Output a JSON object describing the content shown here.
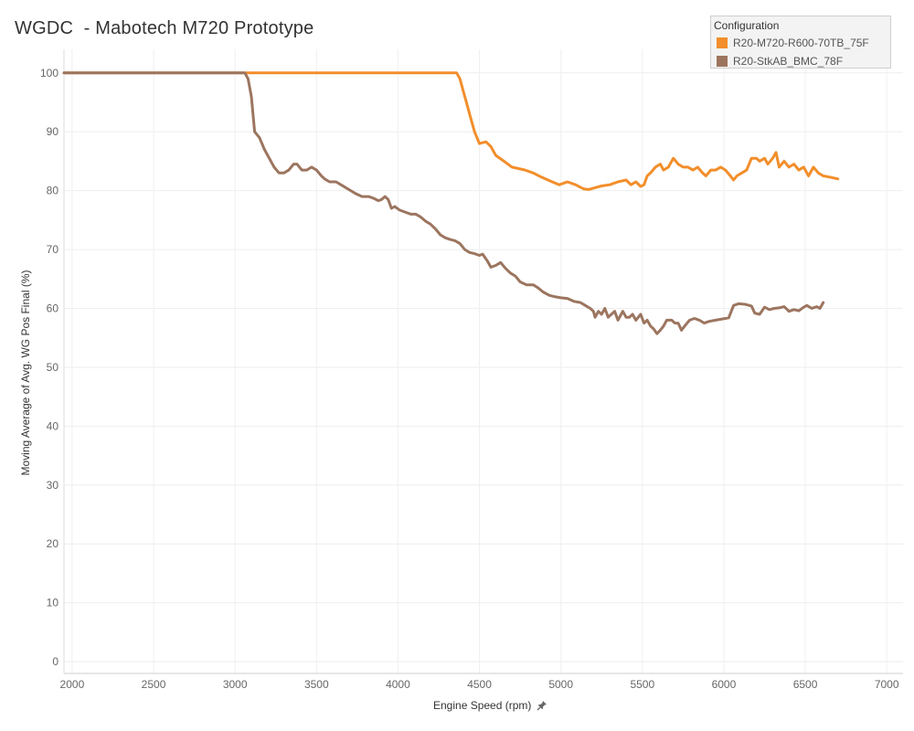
{
  "chart_data": {
    "type": "line",
    "title": "WGDC  - Mabotech M720 Prototype",
    "xlabel": "Engine Speed (rpm)",
    "ylabel": "Moving Average of Avg. WG Pos Final (%)",
    "xlim": [
      1950,
      7100
    ],
    "ylim": [
      -2,
      104
    ],
    "grid": true,
    "x_ticks": [
      2000,
      2500,
      3000,
      3500,
      4000,
      4500,
      5000,
      5500,
      6000,
      6500,
      7000
    ],
    "y_ticks": [
      0,
      10,
      20,
      30,
      40,
      50,
      60,
      70,
      80,
      90,
      100
    ],
    "legend": {
      "title": "Configuration",
      "position": "top-right"
    },
    "series": [
      {
        "name": "R20-M720-R600-70TB_75F",
        "color": "#f28e2b",
        "points": [
          [
            1950,
            100
          ],
          [
            4360,
            100
          ],
          [
            4380,
            99
          ],
          [
            4400,
            97
          ],
          [
            4420,
            95
          ],
          [
            4440,
            93
          ],
          [
            4470,
            90
          ],
          [
            4500,
            88
          ],
          [
            4540,
            88.3
          ],
          [
            4570,
            87.5
          ],
          [
            4600,
            86
          ],
          [
            4650,
            85
          ],
          [
            4700,
            84
          ],
          [
            4780,
            83.5
          ],
          [
            4830,
            83
          ],
          [
            4880,
            82.3
          ],
          [
            4930,
            81.7
          ],
          [
            4990,
            81
          ],
          [
            5040,
            81.5
          ],
          [
            5090,
            81
          ],
          [
            5140,
            80.3
          ],
          [
            5170,
            80.2
          ],
          [
            5210,
            80.5
          ],
          [
            5250,
            80.8
          ],
          [
            5300,
            81
          ],
          [
            5350,
            81.5
          ],
          [
            5400,
            81.8
          ],
          [
            5430,
            81
          ],
          [
            5460,
            81.5
          ],
          [
            5490,
            80.7
          ],
          [
            5510,
            81
          ],
          [
            5530,
            82.5
          ],
          [
            5550,
            83
          ],
          [
            5580,
            84
          ],
          [
            5610,
            84.5
          ],
          [
            5630,
            83.5
          ],
          [
            5660,
            84
          ],
          [
            5690,
            85.5
          ],
          [
            5720,
            84.5
          ],
          [
            5750,
            84
          ],
          [
            5780,
            84
          ],
          [
            5810,
            83.5
          ],
          [
            5840,
            84
          ],
          [
            5870,
            83
          ],
          [
            5890,
            82.5
          ],
          [
            5920,
            83.5
          ],
          [
            5950,
            83.5
          ],
          [
            5980,
            84
          ],
          [
            6010,
            83.5
          ],
          [
            6040,
            82.5
          ],
          [
            6060,
            81.8
          ],
          [
            6080,
            82.5
          ],
          [
            6110,
            83
          ],
          [
            6140,
            83.5
          ],
          [
            6170,
            85.5
          ],
          [
            6200,
            85.5
          ],
          [
            6220,
            85
          ],
          [
            6250,
            85.5
          ],
          [
            6270,
            84.5
          ],
          [
            6300,
            85.5
          ],
          [
            6320,
            86.5
          ],
          [
            6340,
            84
          ],
          [
            6370,
            85
          ],
          [
            6400,
            84
          ],
          [
            6430,
            84.5
          ],
          [
            6460,
            83.5
          ],
          [
            6490,
            84
          ],
          [
            6520,
            82.5
          ],
          [
            6550,
            84
          ],
          [
            6580,
            83
          ],
          [
            6610,
            82.5
          ],
          [
            6650,
            82.3
          ],
          [
            6700,
            82
          ]
        ]
      },
      {
        "name": "R20-StkAB_BMC_78F",
        "color": "#9c755f",
        "points": [
          [
            1950,
            100
          ],
          [
            3060,
            100
          ],
          [
            3080,
            99
          ],
          [
            3100,
            96
          ],
          [
            3120,
            90
          ],
          [
            3150,
            89
          ],
          [
            3180,
            87
          ],
          [
            3210,
            85.5
          ],
          [
            3240,
            84
          ],
          [
            3270,
            83
          ],
          [
            3300,
            83
          ],
          [
            3330,
            83.5
          ],
          [
            3360,
            84.5
          ],
          [
            3380,
            84.5
          ],
          [
            3410,
            83.5
          ],
          [
            3440,
            83.5
          ],
          [
            3470,
            84
          ],
          [
            3500,
            83.5
          ],
          [
            3530,
            82.5
          ],
          [
            3550,
            82
          ],
          [
            3580,
            81.5
          ],
          [
            3620,
            81.5
          ],
          [
            3650,
            81
          ],
          [
            3680,
            80.5
          ],
          [
            3710,
            80
          ],
          [
            3740,
            79.5
          ],
          [
            3780,
            79
          ],
          [
            3820,
            79
          ],
          [
            3850,
            78.7
          ],
          [
            3880,
            78.3
          ],
          [
            3900,
            78.5
          ],
          [
            3920,
            79
          ],
          [
            3940,
            78.5
          ],
          [
            3960,
            77
          ],
          [
            3980,
            77.3
          ],
          [
            4010,
            76.7
          ],
          [
            4050,
            76.3
          ],
          [
            4080,
            76
          ],
          [
            4110,
            76
          ],
          [
            4140,
            75.5
          ],
          [
            4170,
            74.8
          ],
          [
            4200,
            74.3
          ],
          [
            4230,
            73.5
          ],
          [
            4260,
            72.5
          ],
          [
            4290,
            72
          ],
          [
            4320,
            71.7
          ],
          [
            4350,
            71.5
          ],
          [
            4380,
            71
          ],
          [
            4410,
            70
          ],
          [
            4440,
            69.5
          ],
          [
            4470,
            69.3
          ],
          [
            4500,
            69
          ],
          [
            4520,
            69.2
          ],
          [
            4550,
            68
          ],
          [
            4570,
            67
          ],
          [
            4600,
            67.3
          ],
          [
            4630,
            67.8
          ],
          [
            4660,
            66.8
          ],
          [
            4690,
            66
          ],
          [
            4720,
            65.5
          ],
          [
            4750,
            64.5
          ],
          [
            4790,
            64
          ],
          [
            4830,
            64
          ],
          [
            4860,
            63.5
          ],
          [
            4890,
            62.8
          ],
          [
            4930,
            62.2
          ],
          [
            4960,
            62
          ],
          [
            5000,
            61.8
          ],
          [
            5040,
            61.7
          ],
          [
            5080,
            61.2
          ],
          [
            5120,
            61
          ],
          [
            5150,
            60.5
          ],
          [
            5180,
            60
          ],
          [
            5200,
            59.5
          ],
          [
            5210,
            58.5
          ],
          [
            5230,
            59.5
          ],
          [
            5250,
            59
          ],
          [
            5270,
            60
          ],
          [
            5290,
            58.5
          ],
          [
            5310,
            59
          ],
          [
            5330,
            59.5
          ],
          [
            5350,
            58
          ],
          [
            5380,
            59.5
          ],
          [
            5400,
            58.5
          ],
          [
            5420,
            58.5
          ],
          [
            5440,
            59
          ],
          [
            5460,
            58
          ],
          [
            5490,
            59
          ],
          [
            5510,
            57.5
          ],
          [
            5530,
            58
          ],
          [
            5550,
            57
          ],
          [
            5570,
            56.5
          ],
          [
            5590,
            55.7
          ],
          [
            5610,
            56.3
          ],
          [
            5630,
            57
          ],
          [
            5650,
            58
          ],
          [
            5680,
            58
          ],
          [
            5700,
            57.5
          ],
          [
            5720,
            57.5
          ],
          [
            5740,
            56.3
          ],
          [
            5760,
            57
          ],
          [
            5790,
            58
          ],
          [
            5820,
            58.3
          ],
          [
            5850,
            58
          ],
          [
            5880,
            57.5
          ],
          [
            5910,
            57.8
          ],
          [
            5950,
            58
          ],
          [
            5990,
            58.2
          ],
          [
            6030,
            58.4
          ],
          [
            6060,
            60.5
          ],
          [
            6090,
            60.8
          ],
          [
            6130,
            60.7
          ],
          [
            6170,
            60.4
          ],
          [
            6190,
            59.2
          ],
          [
            6220,
            59
          ],
          [
            6250,
            60.2
          ],
          [
            6280,
            59.8
          ],
          [
            6310,
            60
          ],
          [
            6340,
            60.1
          ],
          [
            6370,
            60.3
          ],
          [
            6400,
            59.5
          ],
          [
            6430,
            59.8
          ],
          [
            6460,
            59.6
          ],
          [
            6490,
            60.2
          ],
          [
            6510,
            60.5
          ],
          [
            6540,
            60
          ],
          [
            6570,
            60.3
          ],
          [
            6590,
            60
          ],
          [
            6610,
            61
          ]
        ]
      }
    ]
  }
}
